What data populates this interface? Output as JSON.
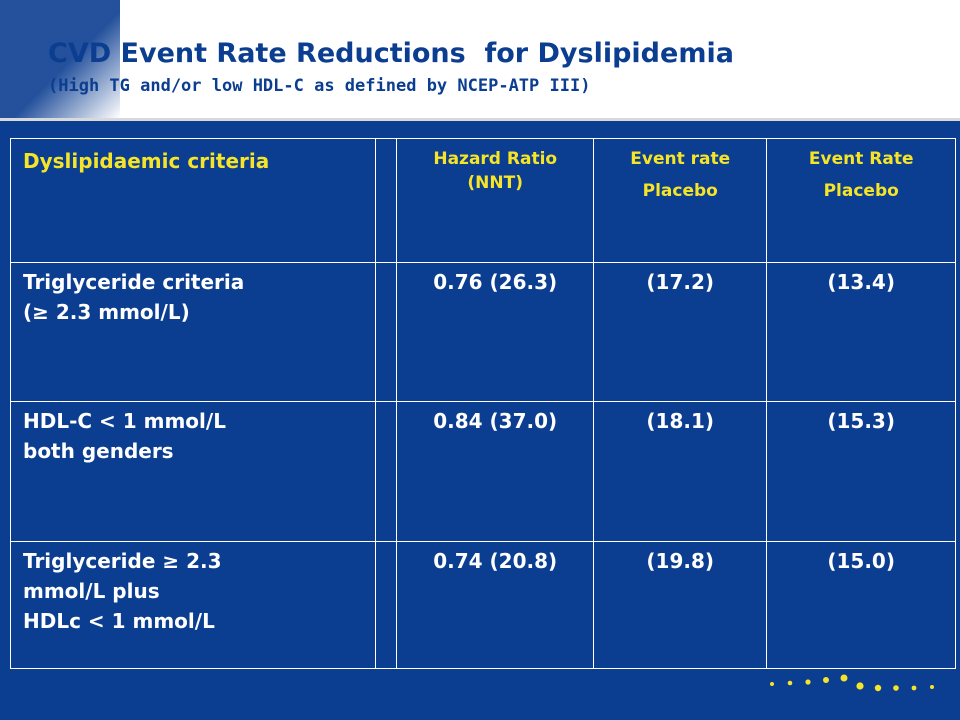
{
  "slide": {
    "title": "CVD Event Rate Reductions  for Dyslipidemia",
    "subtitle": "(High TG and/or low HDL-C as defined by NCEP-ATP III)"
  },
  "table": {
    "headers": {
      "criteria": "Dyslipidaemic criteria",
      "hazard_line1": "Hazard Ratio",
      "hazard_line2": "(NNT)",
      "event1_line1": "Event rate",
      "event1_line2": "Placebo",
      "event2_line1": "Event Rate",
      "event2_line2": "Placebo"
    },
    "rows": [
      {
        "criteria_line1": "Triglyceride criteria",
        "criteria_line2": "(≥ 2.3 mmol/L)",
        "criteria_line3": "",
        "hazard": "0.76 (26.3)",
        "event1": "(17.2)",
        "event2": "(13.4)"
      },
      {
        "criteria_line1": "HDL-C < 1 mmol/L",
        "criteria_line2": "both genders",
        "criteria_line3": "",
        "hazard": "0.84 (37.0)",
        "event1": "(18.1)",
        "event2": "(15.3)"
      },
      {
        "criteria_line1": "Triglyceride ≥ 2.3",
        "criteria_line2": "mmol/L plus",
        "criteria_line3": "HDLc < 1 mmol/L",
        "hazard": "0.74 (20.8)",
        "event1": "(19.8)",
        "event2": "(15.0)"
      }
    ]
  },
  "colors": {
    "background": "#0b3d91",
    "title": "#0b3d91",
    "header_text": "#f5e428",
    "body_text": "#ffffff",
    "dots": "#f5e428"
  }
}
